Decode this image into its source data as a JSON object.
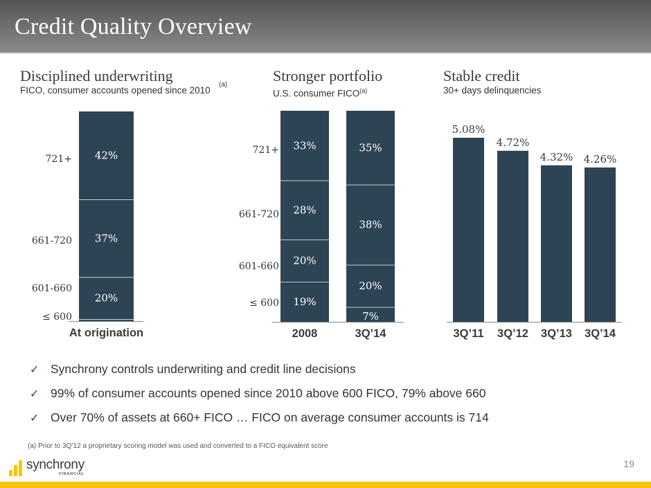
{
  "header": {
    "title": "Credit Quality Overview"
  },
  "colors": {
    "bar": "#2d4454",
    "axis": "#9a9a9a",
    "accent": "#fbc600",
    "divider": "#ffffff"
  },
  "panels": [
    {
      "heading": "Disciplined underwriting",
      "subheading": "FICO, consumer accounts opened since 2010",
      "footnote_mark": "(a)"
    },
    {
      "heading": "Stronger portfolio",
      "subheading": "U.S. consumer FICO",
      "footnote_mark": "(a)"
    },
    {
      "heading": "Stable credit",
      "subheading": "30+ days delinquencies"
    }
  ],
  "chart_data": [
    {
      "type": "bar",
      "stacked": true,
      "title": "Disciplined underwriting",
      "subtitle": "FICO, consumer accounts opened since 2010",
      "categories": [
        "At origination"
      ],
      "bands": [
        "≤ 600",
        "601-660",
        "661-720",
        "721+"
      ],
      "series": [
        {
          "name": "≤ 600",
          "values": [
            1
          ],
          "labels": [
            "1%"
          ]
        },
        {
          "name": "601-660",
          "values": [
            20
          ],
          "labels": [
            "20%"
          ]
        },
        {
          "name": "661-720",
          "values": [
            37
          ],
          "labels": [
            "37%"
          ]
        },
        {
          "name": "721+",
          "values": [
            42
          ],
          "labels": [
            "42%"
          ]
        }
      ],
      "ylim": [
        0,
        100
      ],
      "grid": false,
      "legend": "left-side category labels"
    },
    {
      "type": "bar",
      "stacked": true,
      "title": "Stronger portfolio",
      "subtitle": "U.S. consumer FICO",
      "categories": [
        "2008",
        "3Q’14"
      ],
      "bands": [
        "≤ 600",
        "601-660",
        "661-720",
        "721+"
      ],
      "series": [
        {
          "name": "≤ 600",
          "values": [
            19,
            7
          ],
          "labels": [
            "19%",
            "7%"
          ]
        },
        {
          "name": "601-660",
          "values": [
            20,
            20
          ],
          "labels": [
            "20%",
            "20%"
          ]
        },
        {
          "name": "661-720",
          "values": [
            28,
            38
          ],
          "labels": [
            "28%",
            "38%"
          ]
        },
        {
          "name": "721+",
          "values": [
            33,
            35
          ],
          "labels": [
            "33%",
            "35%"
          ]
        }
      ],
      "ylim": [
        0,
        100
      ],
      "grid": false,
      "legend": "left-side category labels"
    },
    {
      "type": "bar",
      "title": "Stable credit",
      "subtitle": "30+ days delinquencies",
      "categories": [
        "3Q’11",
        "3Q’12",
        "3Q’13",
        "3Q’14"
      ],
      "values": [
        5.08,
        4.72,
        4.32,
        4.26
      ],
      "labels": [
        "5.08%",
        "4.72%",
        "4.32%",
        "4.26%"
      ],
      "ylim": [
        0,
        5.6
      ],
      "grid": false
    }
  ],
  "bullets": [
    "Synchrony controls underwriting and credit line decisions",
    "99% of consumer accounts opened since 2010 above 600 FICO, 79% above 660",
    "Over 70% of assets at 660+ FICO … FICO on average consumer accounts is 714"
  ],
  "bullet_icon": "✓",
  "footnote": "(a) Prior to 3Q’12 a proprietary scoring model was used and converted to a FICO equivalent score",
  "logo": {
    "word": "synchrony",
    "sub": "FINANCIAL"
  },
  "page_number": "19"
}
